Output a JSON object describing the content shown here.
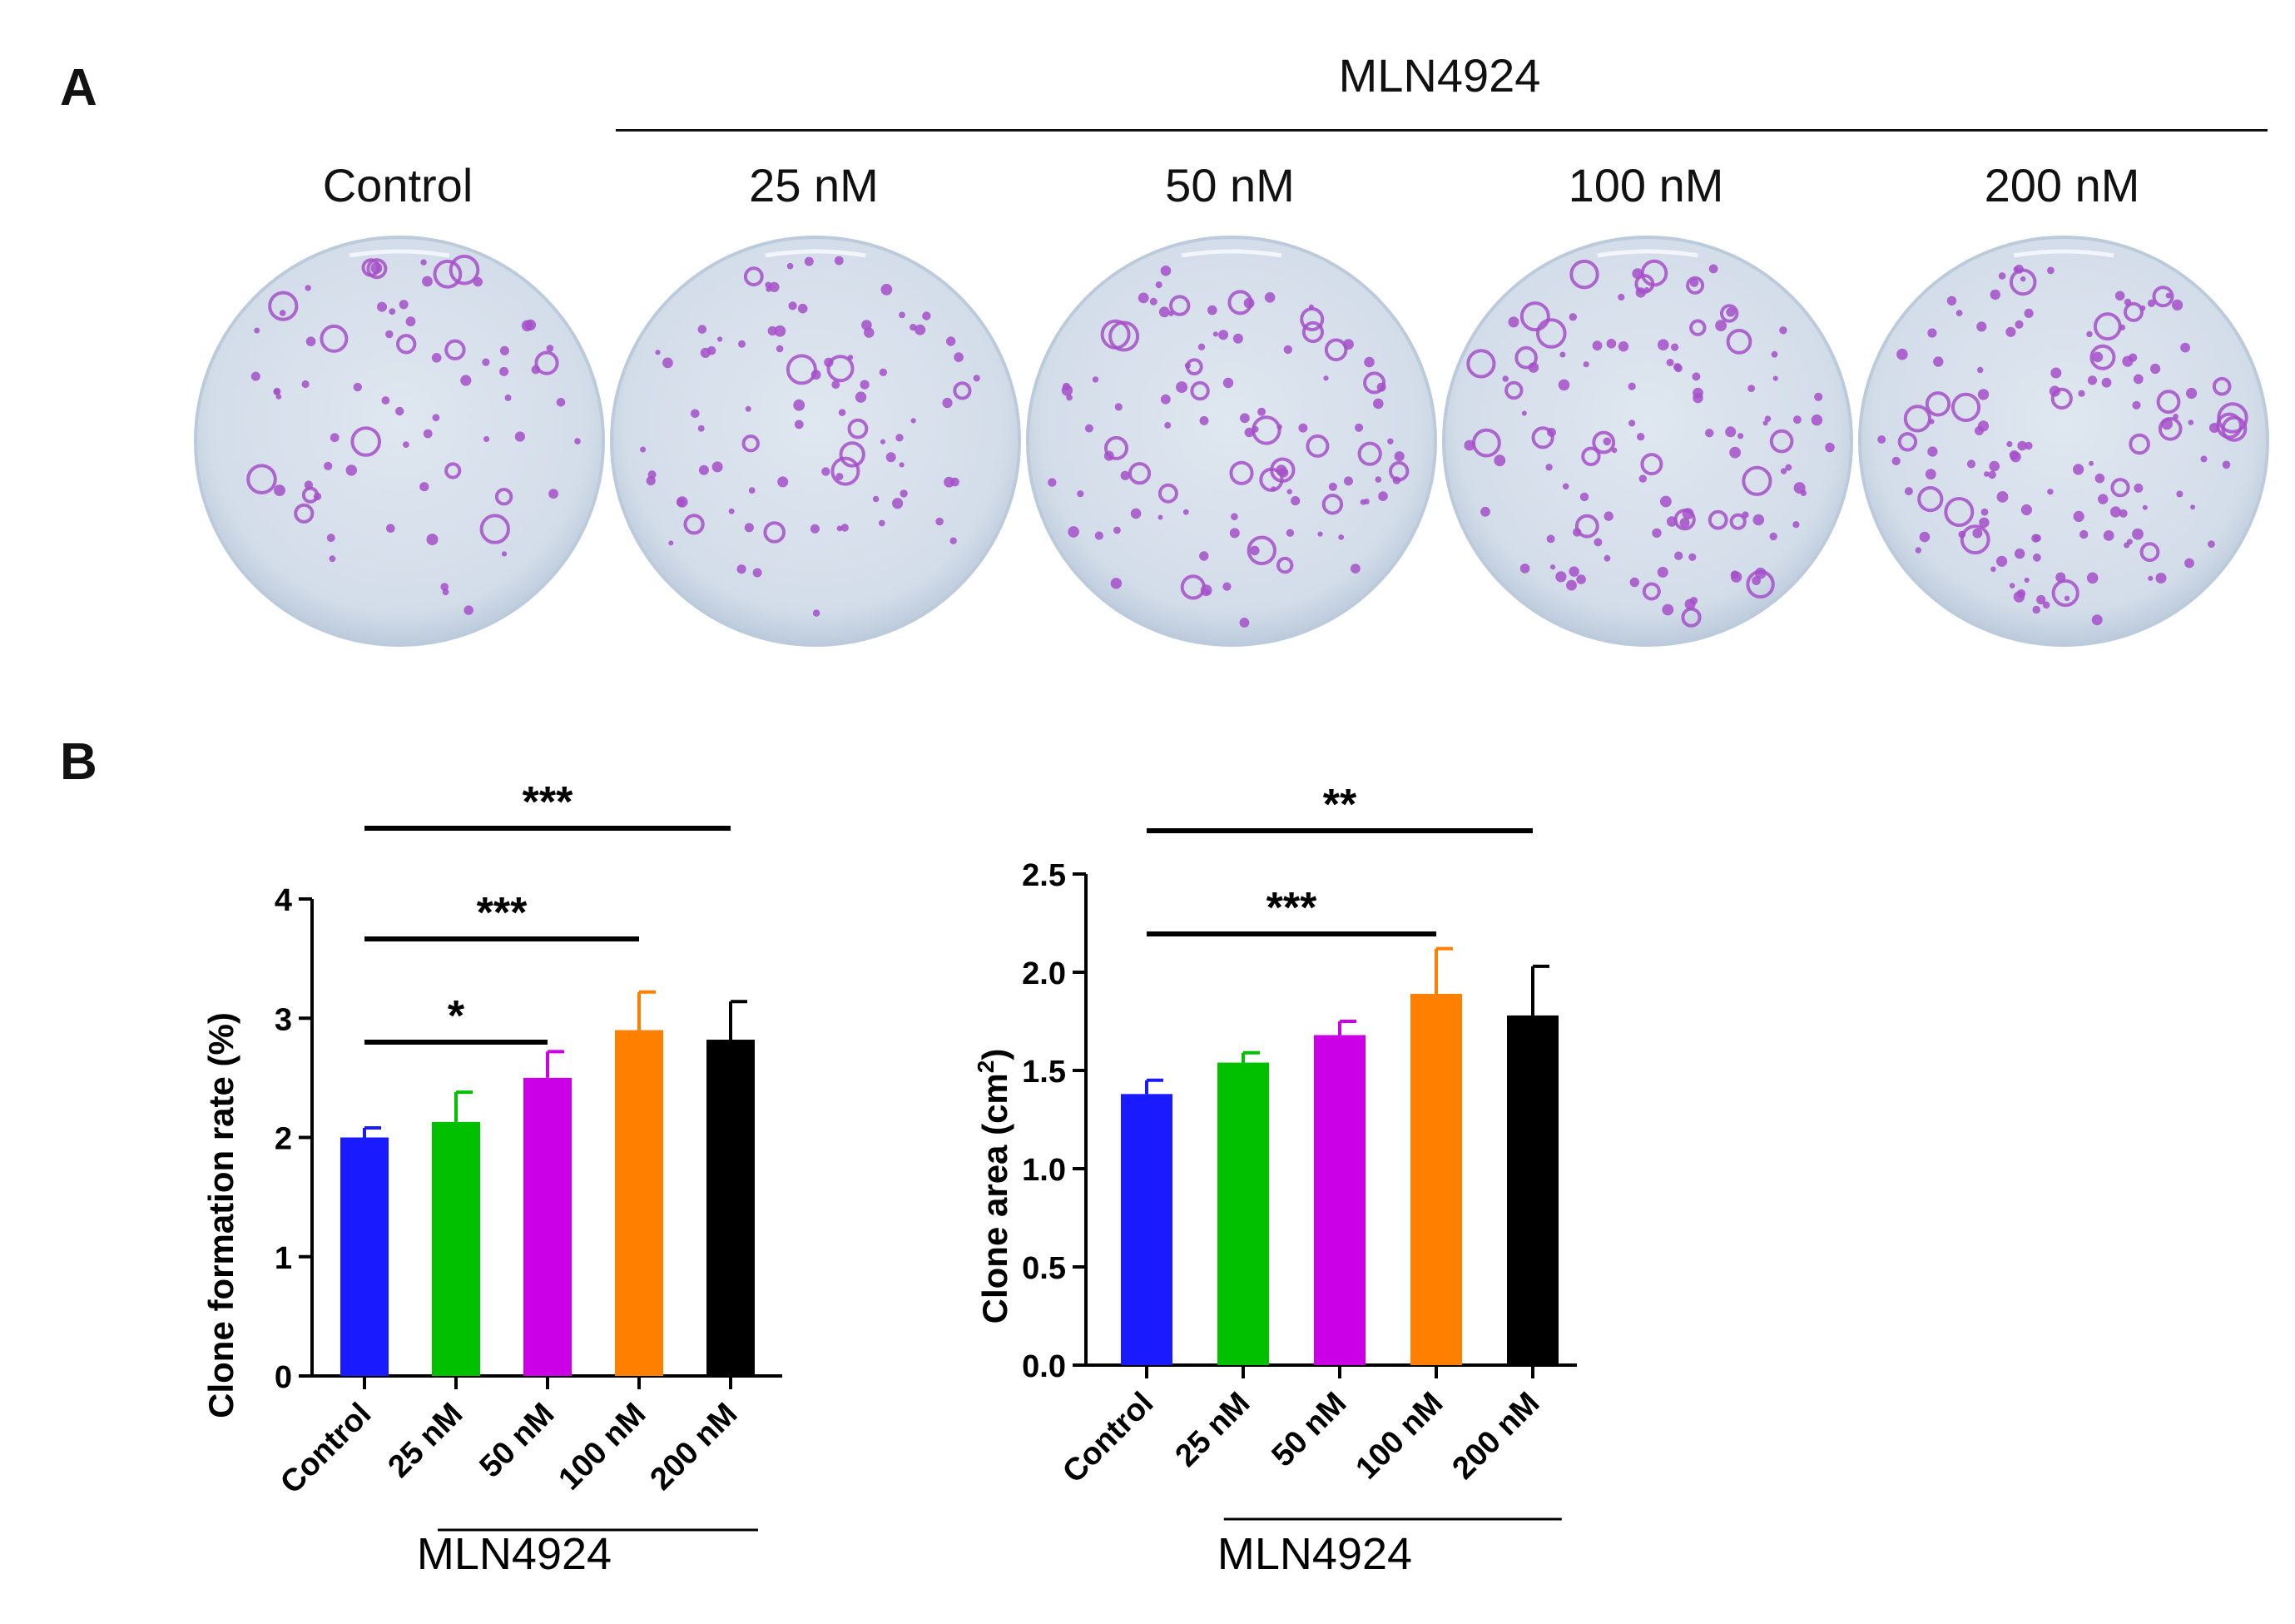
{
  "panel_a": {
    "letter": "A",
    "treatment_label": "MLN4924",
    "conditions": [
      "Control",
      "25 nM",
      "50 nM",
      "100 nM",
      "200 nM"
    ],
    "colors": {
      "plate_bg": "#d3dde9",
      "colony": "#a64fc9",
      "plate_rim": "#bccbdc"
    }
  },
  "panel_b": {
    "letter": "B",
    "chart_data": [
      {
        "type": "bar",
        "categories": [
          "Control",
          "25 nM",
          "50 nM",
          "100 nM",
          "200 nM"
        ],
        "values": [
          2.0,
          2.13,
          2.5,
          2.9,
          2.82
        ],
        "errors": [
          0.08,
          0.25,
          0.22,
          0.32,
          0.32
        ],
        "colors": [
          "#1a1aff",
          "#00c000",
          "#cc00e6",
          "#ff8000",
          "#000000"
        ],
        "ylabel": "Clone formation rate (%)",
        "ylim": [
          0,
          4
        ],
        "yticks": [
          "0",
          "1",
          "2",
          "3",
          "4"
        ],
        "ytick_values": [
          0,
          1,
          2,
          3,
          4
        ],
        "group_label": "MLN4924",
        "significance": [
          {
            "from": 0,
            "to": 4,
            "label": "***"
          },
          {
            "from": 0,
            "to": 3,
            "label": "***"
          },
          {
            "from": 0,
            "to": 2,
            "label": "*"
          }
        ]
      },
      {
        "type": "bar",
        "categories": [
          "Control",
          "25 nM",
          "50 nM",
          "100 nM",
          "200 nM"
        ],
        "values": [
          1.38,
          1.54,
          1.68,
          1.89,
          1.78
        ],
        "errors": [
          0.07,
          0.05,
          0.07,
          0.23,
          0.25
        ],
        "colors": [
          "#1a1aff",
          "#00c000",
          "#cc00e6",
          "#ff8000",
          "#000000"
        ],
        "ylabel_main": "Clone area (cm",
        "ylabel_sup": "2",
        "ylabel_end": ")",
        "ylim": [
          0,
          2.5
        ],
        "yticks": [
          "0.0",
          "0.5",
          "1.0",
          "1.5",
          "2.0",
          "2.5"
        ],
        "ytick_values": [
          0,
          0.5,
          1.0,
          1.5,
          2.0,
          2.5
        ],
        "group_label": "MLN4924",
        "significance": [
          {
            "from": 0,
            "to": 4,
            "label": "**"
          },
          {
            "from": 0,
            "to": 3,
            "label": "***"
          }
        ]
      }
    ]
  }
}
